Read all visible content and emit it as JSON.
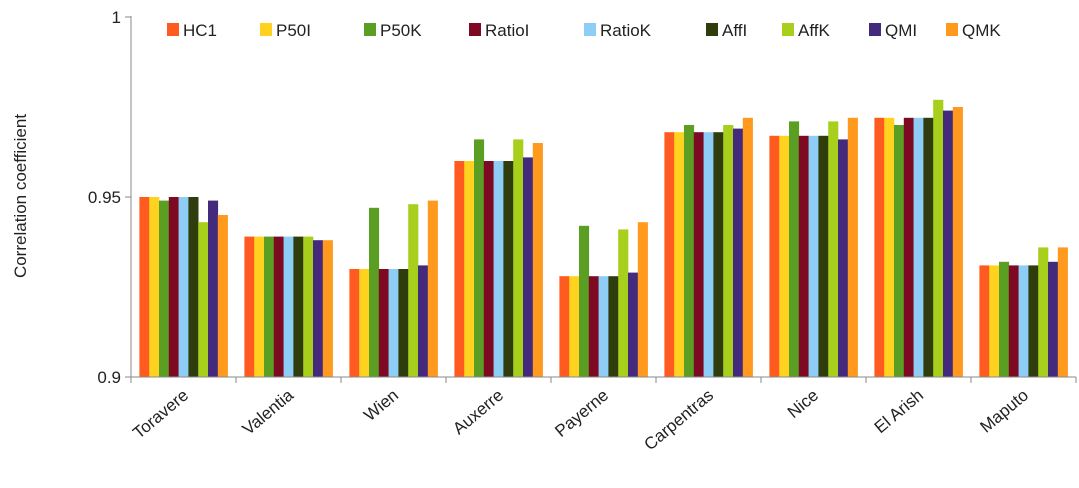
{
  "chart_data": {
    "type": "bar",
    "title": "",
    "xlabel": "",
    "ylabel": "Correlation coefficient",
    "ylim": [
      0.9,
      1.0
    ],
    "yticks": [
      0.9,
      0.95,
      1
    ],
    "ytick_labels": [
      "0.9",
      "0.95",
      "1"
    ],
    "grid": false,
    "legend_position": "top",
    "categories": [
      "Toravere",
      "Valentia",
      "Wien",
      "Auxerre",
      "Payerne",
      "Carpentras",
      "Nice",
      "El Arish",
      "Maputo"
    ],
    "series": [
      {
        "name": "HC1",
        "color": "#ff5a1f",
        "values": [
          0.95,
          0.939,
          0.93,
          0.96,
          0.928,
          0.968,
          0.967,
          0.972,
          0.931
        ]
      },
      {
        "name": "P50I",
        "color": "#ffd21f",
        "values": [
          0.95,
          0.939,
          0.93,
          0.96,
          0.928,
          0.968,
          0.967,
          0.972,
          0.931
        ]
      },
      {
        "name": "P50K",
        "color": "#5a9e23",
        "values": [
          0.949,
          0.939,
          0.947,
          0.966,
          0.942,
          0.97,
          0.971,
          0.97,
          0.932
        ]
      },
      {
        "name": "RatioI",
        "color": "#7d0a22",
        "values": [
          0.95,
          0.939,
          0.93,
          0.96,
          0.928,
          0.968,
          0.967,
          0.972,
          0.931
        ]
      },
      {
        "name": "RatioK",
        "color": "#8ecdf5",
        "values": [
          0.95,
          0.939,
          0.93,
          0.96,
          0.928,
          0.968,
          0.967,
          0.972,
          0.931
        ]
      },
      {
        "name": "AffI",
        "color": "#2f3d0c",
        "values": [
          0.95,
          0.939,
          0.93,
          0.96,
          0.928,
          0.968,
          0.967,
          0.972,
          0.931
        ]
      },
      {
        "name": "AffK",
        "color": "#a8cf1c",
        "values": [
          0.943,
          0.939,
          0.948,
          0.966,
          0.941,
          0.97,
          0.971,
          0.977,
          0.936
        ]
      },
      {
        "name": "QMI",
        "color": "#442a7c",
        "values": [
          0.949,
          0.938,
          0.931,
          0.961,
          0.929,
          0.969,
          0.966,
          0.974,
          0.932
        ]
      },
      {
        "name": "QMK",
        "color": "#ff9a1f",
        "values": [
          0.945,
          0.938,
          0.949,
          0.965,
          0.943,
          0.972,
          0.972,
          0.975,
          0.936
        ]
      }
    ]
  }
}
